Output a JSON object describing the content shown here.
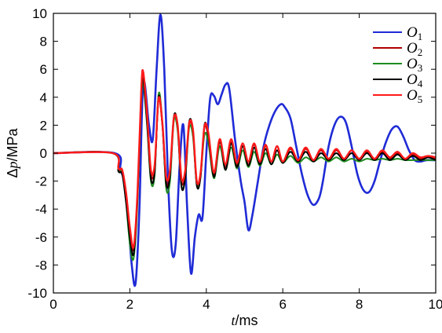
{
  "chart_data": {
    "type": "line",
    "xlabel": "t/ms",
    "ylabel": "Δp/MPa",
    "xlim": [
      0,
      10
    ],
    "ylim": [
      -10,
      10
    ],
    "xticks": [
      0,
      2,
      4,
      6,
      8,
      10
    ],
    "yticks": [
      -10,
      -8,
      -6,
      -4,
      -2,
      0,
      2,
      4,
      6,
      8,
      10
    ],
    "grid": false,
    "legend_position": "top-right",
    "series": [
      {
        "name": "O1",
        "color": "#1f2bd6",
        "x": [
          0,
          1.6,
          1.75,
          1.85,
          1.95,
          2.05,
          2.15,
          2.25,
          2.35,
          2.5,
          2.6,
          2.7,
          2.8,
          2.9,
          3.0,
          3.1,
          3.2,
          3.3,
          3.4,
          3.5,
          3.6,
          3.7,
          3.8,
          3.9,
          4.0,
          4.1,
          4.2,
          4.3,
          4.4,
          4.5,
          4.6,
          4.75,
          4.9,
          5.0,
          5.1,
          5.2,
          5.35,
          5.5,
          5.65,
          5.8,
          5.95,
          6.05,
          6.2,
          6.35,
          6.5,
          6.65,
          6.8,
          6.95,
          7.05,
          7.2,
          7.35,
          7.5,
          7.65,
          7.8,
          7.95,
          8.1,
          8.25,
          8.4,
          8.55,
          8.7,
          8.85,
          9.0,
          9.15,
          9.3,
          9.45,
          9.6,
          9.75,
          9.9,
          10.0
        ],
        "y": [
          0,
          0,
          -1.2,
          -2.0,
          -4.5,
          -8.0,
          -9.3,
          -4.0,
          5.0,
          2.0,
          1.0,
          6.0,
          9.9,
          6.0,
          -2.0,
          -7.0,
          -6.5,
          -1.0,
          2.0,
          -4.0,
          -8.6,
          -6.0,
          -4.4,
          -4.6,
          0,
          3.9,
          4.1,
          3.5,
          4.2,
          4.9,
          4.6,
          1.0,
          -2.0,
          -3.5,
          -5.5,
          -4.5,
          -2.0,
          0.5,
          2.0,
          3.0,
          3.5,
          3.3,
          2.5,
          0.5,
          -1.5,
          -3.0,
          -3.7,
          -3.2,
          -2.0,
          0.5,
          2.0,
          2.6,
          2.2,
          0.5,
          -1.5,
          -2.6,
          -2.8,
          -2.0,
          -0.5,
          0.8,
          1.7,
          1.9,
          1.2,
          0.2,
          -0.5,
          -0.6,
          -0.5,
          -0.5,
          -0.5
        ]
      },
      {
        "name": "O2",
        "color": "#b00000",
        "x": [
          0,
          1.55,
          1.7,
          1.8,
          1.9,
          2.0,
          2.1,
          2.2,
          2.3,
          2.35,
          2.45,
          2.55,
          2.65,
          2.75,
          2.85,
          2.95,
          3.05,
          3.15,
          3.25,
          3.35,
          3.45,
          3.55,
          3.65,
          3.75,
          3.85,
          3.95,
          4.05,
          4.2,
          4.35,
          4.5,
          4.65,
          4.8,
          4.95,
          5.1,
          5.25,
          5.4,
          5.55,
          5.7,
          5.85,
          6.0,
          6.2,
          6.4,
          6.6,
          6.8,
          7.0,
          7.2,
          7.4,
          7.6,
          7.8,
          8.0,
          8.2,
          8.4,
          8.6,
          8.8,
          9.0,
          9.2,
          9.4,
          9.6,
          9.8,
          10.0
        ],
        "y": [
          0,
          0,
          -1.2,
          -1.3,
          -3.0,
          -5.5,
          -6.9,
          -3.0,
          4.5,
          5.6,
          2.5,
          -1.5,
          -1.0,
          3.8,
          2.0,
          -2.0,
          -1.5,
          2.4,
          1.8,
          -2.0,
          -1.5,
          2.0,
          1.5,
          -2.2,
          -1.6,
          1.8,
          1.2,
          -1.6,
          0.8,
          -1.0,
          0.8,
          -0.9,
          0.5,
          -0.8,
          0.6,
          -0.8,
          0.5,
          -0.8,
          0.5,
          -0.7,
          0.3,
          -0.6,
          0.3,
          -0.5,
          0.2,
          -0.5,
          0.2,
          -0.4,
          0.2,
          -0.4,
          0.1,
          -0.4,
          0.1,
          -0.4,
          0.0,
          -0.4,
          -0.1,
          -0.4,
          -0.3,
          -0.4
        ]
      },
      {
        "name": "O3",
        "color": "#1e8c1e",
        "x": [
          0,
          1.55,
          1.7,
          1.8,
          1.9,
          2.0,
          2.1,
          2.2,
          2.3,
          2.35,
          2.45,
          2.55,
          2.65,
          2.75,
          2.85,
          2.95,
          3.05,
          3.15,
          3.25,
          3.35,
          3.45,
          3.55,
          3.65,
          3.75,
          3.85,
          3.95,
          4.05,
          4.2,
          4.35,
          4.5,
          4.65,
          4.8,
          4.95,
          5.1,
          5.25,
          5.4,
          5.55,
          5.7,
          5.85,
          6.0,
          6.2,
          6.4,
          6.6,
          6.8,
          7.0,
          7.2,
          7.4,
          7.6,
          7.8,
          8.0,
          8.2,
          8.4,
          8.6,
          8.8,
          9.0,
          9.2,
          9.4,
          9.6,
          9.8,
          10.0
        ],
        "y": [
          0,
          0,
          -1.3,
          -1.4,
          -3.5,
          -6.5,
          -7.5,
          -3.5,
          4.0,
          5.0,
          2.0,
          -2.0,
          -1.5,
          4.2,
          2.2,
          -2.5,
          -2.0,
          2.3,
          1.6,
          -2.3,
          -1.8,
          1.8,
          1.2,
          -2.2,
          -1.6,
          1.3,
          0.8,
          -1.8,
          0.5,
          -1.2,
          0.4,
          -1.1,
          0.2,
          -1.0,
          0.1,
          -0.9,
          0.0,
          -0.8,
          -0.1,
          -0.7,
          -0.2,
          -0.7,
          -0.3,
          -0.6,
          -0.3,
          -0.6,
          -0.3,
          -0.6,
          -0.4,
          -0.6,
          -0.4,
          -0.5,
          -0.4,
          -0.5,
          -0.4,
          -0.5,
          -0.5,
          -0.5,
          -0.5,
          -0.5
        ]
      },
      {
        "name": "O4",
        "color": "#000000",
        "x": [
          0,
          1.55,
          1.7,
          1.8,
          1.9,
          2.0,
          2.1,
          2.2,
          2.3,
          2.35,
          2.45,
          2.55,
          2.65,
          2.75,
          2.85,
          2.95,
          3.05,
          3.15,
          3.25,
          3.35,
          3.45,
          3.55,
          3.65,
          3.75,
          3.85,
          3.95,
          4.05,
          4.2,
          4.35,
          4.5,
          4.65,
          4.8,
          4.95,
          5.1,
          5.25,
          5.4,
          5.55,
          5.7,
          5.85,
          6.0,
          6.2,
          6.4,
          6.6,
          6.8,
          7.0,
          7.2,
          7.4,
          7.6,
          7.8,
          8.0,
          8.2,
          8.4,
          8.6,
          8.8,
          9.0,
          9.2,
          9.4,
          9.6,
          9.8,
          10.0
        ],
        "y": [
          0,
          0,
          -1.3,
          -1.5,
          -3.5,
          -6.0,
          -7.2,
          -3.2,
          4.2,
          5.3,
          2.2,
          -1.8,
          -1.3,
          4.0,
          2.1,
          -2.2,
          -1.6,
          2.6,
          1.9,
          -2.4,
          -1.7,
          2.2,
          1.6,
          -2.3,
          -1.7,
          2.0,
          1.3,
          -1.7,
          0.9,
          -1.2,
          0.7,
          -1.0,
          0.5,
          -0.9,
          0.4,
          -0.8,
          0.3,
          -0.8,
          0.2,
          -0.7,
          0.1,
          -0.6,
          0.1,
          -0.6,
          0.0,
          -0.5,
          0.0,
          -0.5,
          0.0,
          -0.5,
          0.0,
          -0.5,
          0.0,
          -0.5,
          -0.1,
          -0.5,
          -0.2,
          -0.5,
          -0.3,
          -0.5
        ]
      },
      {
        "name": "O5",
        "color": "#ff1a1a",
        "x": [
          0,
          1.55,
          1.7,
          1.8,
          1.9,
          2.0,
          2.1,
          2.2,
          2.3,
          2.35,
          2.45,
          2.55,
          2.65,
          2.75,
          2.85,
          2.95,
          3.05,
          3.15,
          3.25,
          3.35,
          3.45,
          3.55,
          3.65,
          3.75,
          3.85,
          3.95,
          4.05,
          4.2,
          4.35,
          4.5,
          4.65,
          4.8,
          4.95,
          5.1,
          5.25,
          5.4,
          5.55,
          5.7,
          5.85,
          6.0,
          6.2,
          6.4,
          6.6,
          6.8,
          7.0,
          7.2,
          7.4,
          7.6,
          7.8,
          8.0,
          8.2,
          8.4,
          8.6,
          8.8,
          9.0,
          9.2,
          9.4,
          9.6,
          9.8,
          10.0
        ],
        "y": [
          0,
          0,
          -1.1,
          -1.2,
          -2.8,
          -5.3,
          -6.7,
          -2.8,
          4.6,
          5.8,
          2.8,
          -1.2,
          -0.8,
          3.9,
          2.2,
          -1.7,
          -1.2,
          2.5,
          2.0,
          -1.8,
          -1.2,
          2.1,
          1.7,
          -2.0,
          -1.4,
          1.9,
          1.5,
          -1.4,
          1.0,
          -0.8,
          1.0,
          -0.7,
          0.7,
          -0.6,
          0.7,
          -0.6,
          0.6,
          -0.6,
          0.5,
          -0.6,
          0.4,
          -0.5,
          0.4,
          -0.5,
          0.3,
          -0.4,
          0.3,
          -0.4,
          0.2,
          -0.4,
          0.2,
          -0.4,
          0.2,
          -0.3,
          0.1,
          -0.4,
          0.0,
          -0.3,
          -0.2,
          -0.3
        ]
      }
    ]
  }
}
